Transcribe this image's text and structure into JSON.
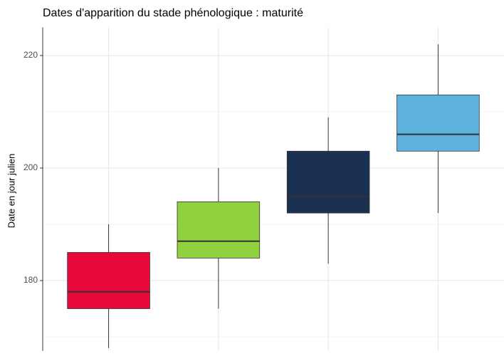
{
  "chart_data": {
    "type": "boxplot",
    "title": "Dates d'apparition du stade phénologique : maturité",
    "y_label": "Date en jour julien",
    "categories": [
      null,
      null,
      null,
      null
    ],
    "boxes": [
      {
        "color": "#e8083a",
        "whislo": 168,
        "q1": 175,
        "med": 178,
        "q3": 185,
        "whishi": 190
      },
      {
        "color": "#8fd13f",
        "whislo": 175,
        "q1": 184,
        "med": 187,
        "q3": 194,
        "whishi": 200
      },
      {
        "color": "#1b3152",
        "whislo": 183,
        "q1": 192,
        "med": 195,
        "q3": 203,
        "whishi": 209
      },
      {
        "color": "#5db3db",
        "whislo": 192,
        "q1": 203,
        "med": 206,
        "q3": 213,
        "whishi": 222
      }
    ],
    "ylim": [
      167.5,
      225
    ],
    "yticks": [
      180,
      200,
      220
    ],
    "minor_yticks": [
      170,
      190,
      210
    ],
    "grid": true
  }
}
